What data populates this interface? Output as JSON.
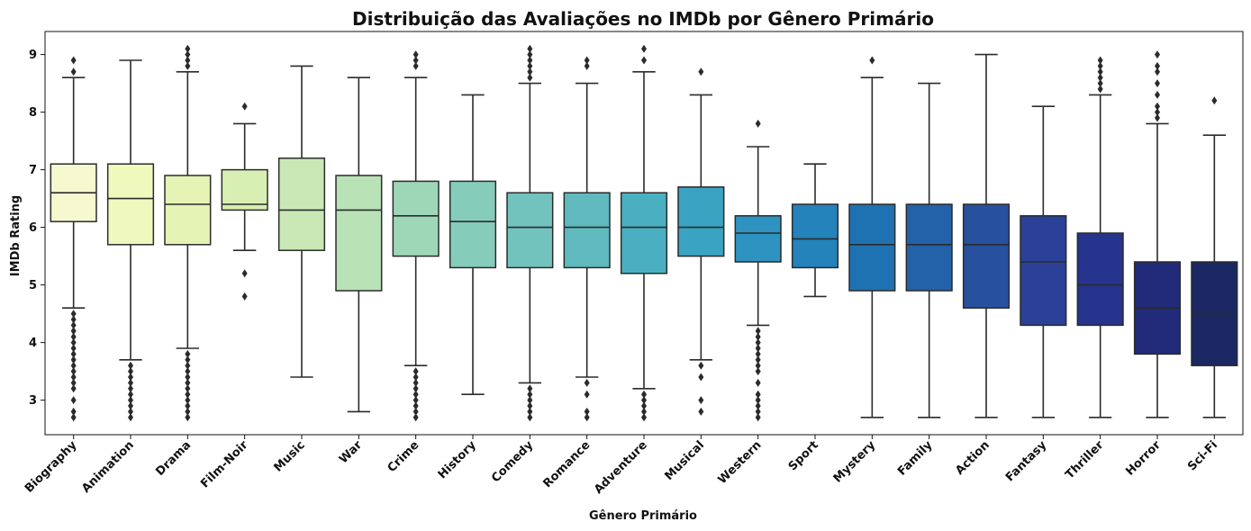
{
  "chart_data": {
    "type": "box",
    "title": "Distribuição das Avaliações no IMDb por Gênero Primário",
    "xlabel": "Gênero Primário",
    "ylabel": "IMDb Rating",
    "ylim": [
      2.4,
      9.4
    ],
    "yticks": [
      3,
      4,
      5,
      6,
      7,
      8,
      9
    ],
    "categories": [
      "Biography",
      "Animation",
      "Drama",
      "Film-Noir",
      "Music",
      "War",
      "Crime",
      "History",
      "Comedy",
      "Romance",
      "Adventure",
      "Musical",
      "Western",
      "Sport",
      "Mystery",
      "Family",
      "Action",
      "Fantasy",
      "Thriller",
      "Horror",
      "Sci-Fi"
    ],
    "colors": [
      "#f6f9cf",
      "#eff8bd",
      "#e5f3b4",
      "#d8efb3",
      "#c9e8b5",
      "#b9e2b6",
      "#9ed6b8",
      "#86ccbb",
      "#72c2bd",
      "#5fb9bd",
      "#4aafc0",
      "#3ba3c2",
      "#2e93c0",
      "#2383ba",
      "#1f72b1",
      "#2361a8",
      "#27509e",
      "#2a4197",
      "#27348d",
      "#212b7a",
      "#1b2863"
    ],
    "boxes": [
      {
        "whislo": 4.6,
        "q1": 6.1,
        "median": 6.6,
        "q3": 7.1,
        "whishi": 8.6,
        "outliers": [
          8.7,
          8.9,
          4.5,
          4.4,
          4.3,
          4.2,
          4.1,
          4.0,
          3.9,
          3.8,
          3.7,
          3.6,
          3.5,
          3.4,
          3.3,
          3.2,
          3.0,
          2.8,
          2.7
        ]
      },
      {
        "whislo": 3.7,
        "q1": 5.7,
        "median": 6.5,
        "q3": 7.1,
        "whishi": 8.9,
        "outliers": [
          3.6,
          3.5,
          3.4,
          3.3,
          3.2,
          3.1,
          3.0,
          2.9,
          2.8,
          2.7
        ]
      },
      {
        "whislo": 3.9,
        "q1": 5.7,
        "median": 6.4,
        "q3": 6.9,
        "whishi": 8.7,
        "outliers": [
          8.8,
          8.9,
          9.0,
          9.1,
          3.8,
          3.7,
          3.6,
          3.5,
          3.4,
          3.3,
          3.2,
          3.1,
          3.0,
          2.9,
          2.8,
          2.7
        ]
      },
      {
        "whislo": 5.6,
        "q1": 6.3,
        "median": 6.4,
        "q3": 7.0,
        "whishi": 7.8,
        "outliers": [
          8.1,
          5.2,
          4.8
        ]
      },
      {
        "whislo": 3.4,
        "q1": 5.6,
        "median": 6.3,
        "q3": 7.2,
        "whishi": 8.8,
        "outliers": []
      },
      {
        "whislo": 2.8,
        "q1": 4.9,
        "median": 6.3,
        "q3": 6.9,
        "whishi": 8.6,
        "outliers": []
      },
      {
        "whislo": 3.6,
        "q1": 5.5,
        "median": 6.2,
        "q3": 6.8,
        "whishi": 8.6,
        "outliers": [
          8.8,
          8.9,
          9.0,
          3.5,
          3.4,
          3.3,
          3.2,
          3.1,
          3.0,
          2.9,
          2.8,
          2.7
        ]
      },
      {
        "whislo": 3.1,
        "q1": 5.3,
        "median": 6.1,
        "q3": 6.8,
        "whishi": 8.3,
        "outliers": []
      },
      {
        "whislo": 3.3,
        "q1": 5.3,
        "median": 6.0,
        "q3": 6.6,
        "whishi": 8.5,
        "outliers": [
          8.6,
          8.7,
          8.8,
          8.9,
          9.0,
          9.1,
          3.2,
          3.1,
          3.0,
          2.9,
          2.8,
          2.7
        ]
      },
      {
        "whislo": 3.4,
        "q1": 5.3,
        "median": 6.0,
        "q3": 6.6,
        "whishi": 8.5,
        "outliers": [
          8.8,
          8.9,
          3.3,
          3.1,
          2.8,
          2.7
        ]
      },
      {
        "whislo": 3.2,
        "q1": 5.2,
        "median": 6.0,
        "q3": 6.6,
        "whishi": 8.7,
        "outliers": [
          8.9,
          9.1,
          3.1,
          3.0,
          2.9,
          2.8,
          2.7
        ]
      },
      {
        "whislo": 3.7,
        "q1": 5.5,
        "median": 6.0,
        "q3": 6.7,
        "whishi": 8.3,
        "outliers": [
          8.7,
          3.6,
          3.4,
          3.0,
          2.8
        ]
      },
      {
        "whislo": 4.3,
        "q1": 5.4,
        "median": 5.9,
        "q3": 6.2,
        "whishi": 7.4,
        "outliers": [
          7.8,
          4.2,
          4.1,
          4.0,
          3.9,
          3.8,
          3.7,
          3.6,
          3.5,
          3.3,
          3.1,
          3.0,
          2.9,
          2.8,
          2.7
        ]
      },
      {
        "whislo": 4.8,
        "q1": 5.3,
        "median": 5.8,
        "q3": 6.4,
        "whishi": 7.1,
        "outliers": []
      },
      {
        "whislo": 2.7,
        "q1": 4.9,
        "median": 5.7,
        "q3": 6.4,
        "whishi": 8.6,
        "outliers": [
          8.9
        ]
      },
      {
        "whislo": 2.7,
        "q1": 4.9,
        "median": 5.7,
        "q3": 6.4,
        "whishi": 8.5,
        "outliers": []
      },
      {
        "whislo": 2.7,
        "q1": 4.6,
        "median": 5.7,
        "q3": 6.4,
        "whishi": 9.0,
        "outliers": []
      },
      {
        "whislo": 2.7,
        "q1": 4.3,
        "median": 5.4,
        "q3": 6.2,
        "whishi": 8.1,
        "outliers": []
      },
      {
        "whislo": 2.7,
        "q1": 4.3,
        "median": 5.0,
        "q3": 5.9,
        "whishi": 8.3,
        "outliers": [
          8.4,
          8.5,
          8.6,
          8.7,
          8.8,
          8.9
        ]
      },
      {
        "whislo": 2.7,
        "q1": 3.8,
        "median": 4.6,
        "q3": 5.4,
        "whishi": 7.8,
        "outliers": [
          7.9,
          8.0,
          8.1,
          8.3,
          8.5,
          8.7,
          8.8,
          9.0
        ]
      },
      {
        "whislo": 2.7,
        "q1": 3.6,
        "median": 4.5,
        "q3": 5.4,
        "whishi": 7.6,
        "outliers": [
          8.2
        ]
      }
    ]
  }
}
